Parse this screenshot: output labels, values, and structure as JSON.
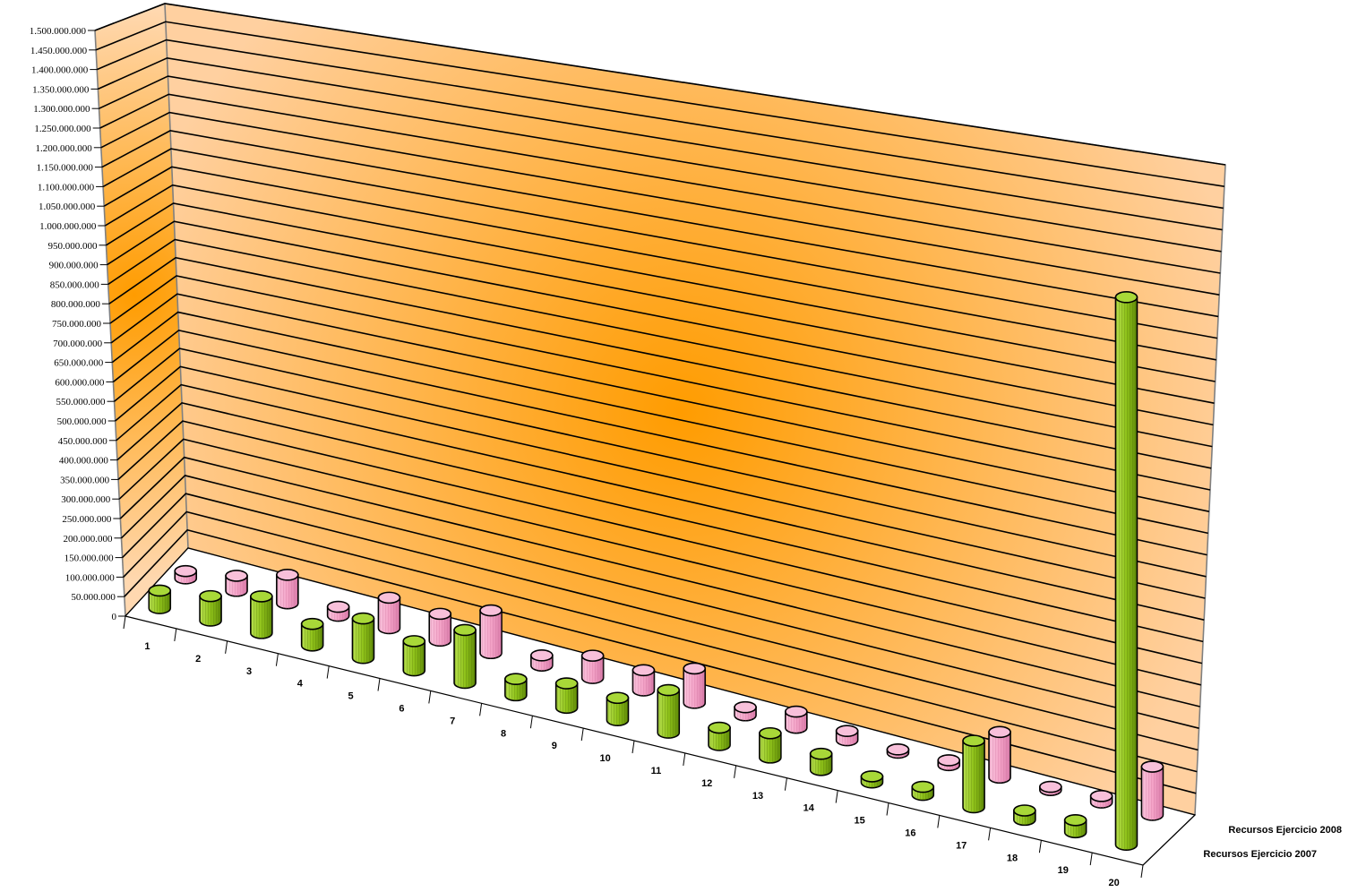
{
  "chart_data": {
    "type": "bar",
    "style": "3d-cylinder",
    "title": "",
    "xlabel": "",
    "ylabel": "",
    "ylim": [
      0,
      1500000000
    ],
    "grid": true,
    "categories": [
      "1",
      "2",
      "3",
      "4",
      "5",
      "6",
      "7",
      "8",
      "9",
      "10",
      "11",
      "12",
      "13",
      "14",
      "15",
      "16",
      "17",
      "18",
      "19",
      "20"
    ],
    "y_ticks": [
      "0",
      "50.000.000",
      "100.000.000",
      "150.000.000",
      "200.000.000",
      "250.000.000",
      "300.000.000",
      "350.000.000",
      "400.000.000",
      "450.000.000",
      "500.000.000",
      "550.000.000",
      "600.000.000",
      "650.000.000",
      "700.000.000",
      "750.000.000",
      "800.000.000",
      "850.000.000",
      "900.000.000",
      "950.000.000",
      "1.000.000.000",
      "1.050.000.000",
      "1.100.000.000",
      "1.150.000.000",
      "1.200.000.000",
      "1.250.000.000",
      "1.300.000.000",
      "1.350.000.000",
      "1.400.000.000",
      "1.450.000.000",
      "1.500.000.000"
    ],
    "series": [
      {
        "name": "Recursos Ejercicio 2007",
        "color": "#f4a4c8",
        "values": [
          18000000,
          37000000,
          70000000,
          22000000,
          75000000,
          66000000,
          105000000,
          25000000,
          55000000,
          50000000,
          85000000,
          20000000,
          40000000,
          23000000,
          8000000,
          12000000,
          113000000,
          8000000,
          16000000,
          120000000
        ]
      },
      {
        "name": "Recursos Ejercicio 2008",
        "color": "#8fc21a",
        "values": [
          43000000,
          60000000,
          90000000,
          53000000,
          97000000,
          72000000,
          130000000,
          40000000,
          60000000,
          55000000,
          105000000,
          43000000,
          60000000,
          40000000,
          15000000,
          20000000,
          165000000,
          23000000,
          30000000,
          1360000000
        ]
      }
    ],
    "legend": {
      "placement": "bottom-right",
      "entries": [
        "Recursos Ejercicio 2008",
        "Recursos Ejercicio 2007"
      ]
    },
    "colors": {
      "wall_center": "#ff9c00",
      "wall_edge": "#ffd0a0"
    }
  }
}
